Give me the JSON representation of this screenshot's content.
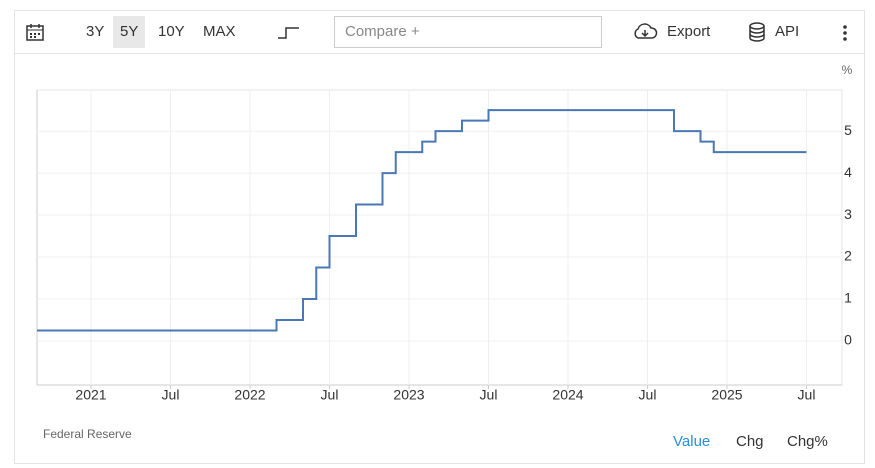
{
  "toolbar": {
    "ranges": [
      "3Y",
      "5Y",
      "10Y",
      "MAX"
    ],
    "compare": "Compare +",
    "export": "Export",
    "api": "API"
  },
  "chart_data": {
    "type": "step-line",
    "ylabel": "%",
    "source": "Federal Reserve",
    "x": [
      "2021-01",
      "2022-03",
      "2022-05",
      "2022-06",
      "2022-07",
      "2022-09",
      "2022-11",
      "2022-12",
      "2023-02",
      "2023-03",
      "2023-05",
      "2023-07",
      "2024-09",
      "2024-11",
      "2024-12",
      "2025-07"
    ],
    "values": [
      0.25,
      0.5,
      1.0,
      1.75,
      2.5,
      3.25,
      4.0,
      4.5,
      4.75,
      5.0,
      5.25,
      5.5,
      5.0,
      4.75,
      4.5,
      4.5
    ],
    "color": "#4a78b5",
    "ylim": [
      -1.05,
      5.98
    ],
    "yticks": [
      0,
      1,
      2,
      3,
      4,
      5
    ],
    "xticks": [
      {
        "value": "2021-01",
        "label": "2021"
      },
      {
        "value": "2021-07",
        "label": "Jul"
      },
      {
        "value": "2022-01",
        "label": "2022"
      },
      {
        "value": "2022-07",
        "label": "Jul"
      },
      {
        "value": "2023-01",
        "label": "2023"
      },
      {
        "value": "2023-07",
        "label": "Jul"
      },
      {
        "value": "2024-01",
        "label": "2024"
      },
      {
        "value": "2024-07",
        "label": "Jul"
      },
      {
        "value": "2025-01",
        "label": "2025"
      },
      {
        "value": "2025-07",
        "label": "Jul"
      }
    ],
    "grid": true
  },
  "footer": {
    "tabs": [
      "Value",
      "Chg",
      "Chg%"
    ]
  }
}
